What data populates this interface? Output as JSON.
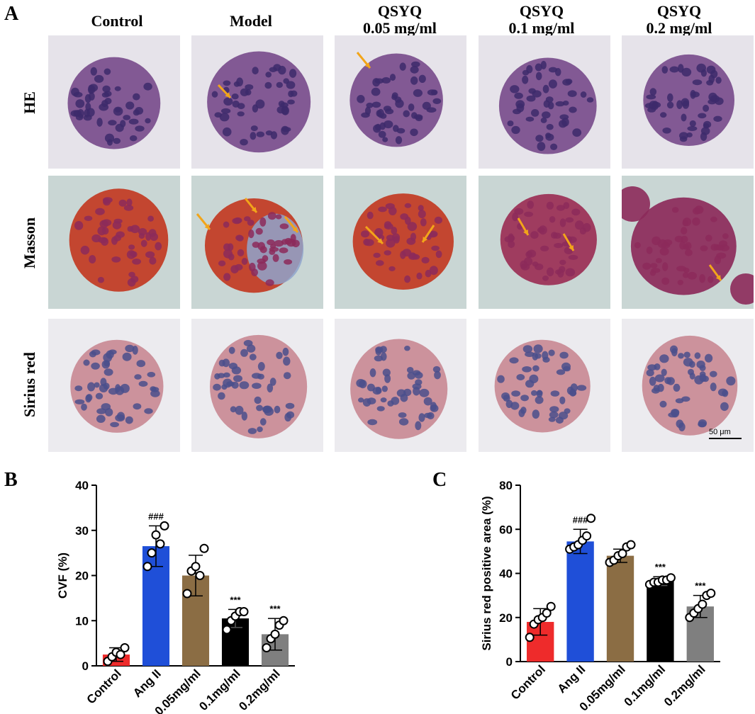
{
  "panel_a": {
    "letter": "A",
    "columns": [
      {
        "line1": "Control",
        "line2": ""
      },
      {
        "line1": "Model",
        "line2": ""
      },
      {
        "line1": "QSYQ",
        "line2": "0.05 mg/ml"
      },
      {
        "line1": "QSYQ",
        "line2": "0.1 mg/ml"
      },
      {
        "line1": "QSYQ",
        "line2": "0.2 mg/ml"
      }
    ],
    "rows": [
      "HE",
      "Masson",
      "Sirius red"
    ],
    "scale_bar": "50 μm",
    "colors": {
      "he_bg": "#e6e3ea",
      "he_cell": "#7a4d8c",
      "he_nuclei": "#3d2a6b",
      "masson_bg": "#c9d6d4",
      "masson_red": "#c23a22",
      "masson_purple": "#8c2a5a",
      "masson_blue": "#8fa4cc",
      "sirius_bg": "#ecebef",
      "sirius_cell": "#c98a95",
      "sirius_nuclei": "#4a4f8c",
      "arrow": "#f2a51a"
    }
  },
  "chart_data": [
    {
      "letter": "B",
      "type": "bar",
      "categories": [
        "Control",
        "Ang II",
        "0.05mg/ml",
        "0.1mg/ml",
        "0.2mg/ml"
      ],
      "values": [
        2.5,
        26.5,
        20,
        10.5,
        7
      ],
      "errors": [
        1.5,
        4.5,
        4.5,
        2,
        3.5
      ],
      "points": [
        [
          1,
          2,
          3,
          2.5,
          4
        ],
        [
          22,
          25,
          29,
          27,
          31
        ],
        [
          16,
          21,
          22,
          20,
          26
        ],
        [
          8,
          10,
          11,
          12,
          12
        ],
        [
          4,
          6,
          7,
          9,
          10
        ]
      ],
      "annotations": [
        "",
        "###",
        "",
        "***",
        "***"
      ],
      "colors": [
        "#ee2b2b",
        "#1f4fd8",
        "#8b6d44",
        "#000000",
        "#7f7f7f"
      ],
      "ylabel": "CVF (%)",
      "ylim": [
        0,
        40
      ],
      "yticks": [
        0,
        10,
        20,
        30,
        40
      ]
    },
    {
      "letter": "C",
      "type": "bar",
      "categories": [
        "Control",
        "Ang II",
        "0.05mg/ml",
        "0.1mg/ml",
        "0.2mg/ml"
      ],
      "values": [
        18,
        54.5,
        48,
        36.5,
        25
      ],
      "errors": [
        6,
        5.5,
        3,
        2,
        5
      ],
      "points": [
        [
          11,
          17,
          19,
          20,
          22,
          25
        ],
        [
          51,
          52,
          53,
          55,
          57,
          65
        ],
        [
          45,
          46,
          48,
          49,
          52,
          53
        ],
        [
          35,
          36,
          36,
          37,
          37,
          38
        ],
        [
          20,
          22,
          24,
          26,
          30,
          31
        ]
      ],
      "annotations": [
        "",
        "###",
        "",
        "***",
        "***"
      ],
      "colors": [
        "#ee2b2b",
        "#1f4fd8",
        "#8b6d44",
        "#000000",
        "#7f7f7f"
      ],
      "ylabel": "Sirius red positive area (%)",
      "ylim": [
        0,
        80
      ],
      "yticks": [
        0,
        20,
        40,
        60,
        80
      ]
    }
  ]
}
